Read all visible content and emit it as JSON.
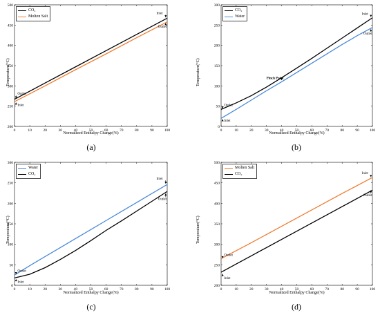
{
  "panel_labels": [
    "(a)",
    "(b)",
    "(c)",
    "(d)"
  ],
  "chart_data": [
    {
      "type": "line",
      "id": "a",
      "xlabel": "Normalized Enthalpy Change(%)",
      "ylabel": "Temperature(°C)",
      "xlim": [
        0,
        100
      ],
      "ylim": [
        200,
        500
      ],
      "xticks": [
        0,
        10,
        20,
        30,
        40,
        50,
        60,
        70,
        80,
        90,
        100
      ],
      "yticks": [
        200,
        250,
        300,
        350,
        400,
        450,
        500
      ],
      "legend_location": "top-left",
      "series": [
        {
          "name": "CO₂",
          "color": "#000000",
          "x": [
            0,
            20,
            40,
            60,
            80,
            100
          ],
          "y": [
            267,
            307,
            347,
            387,
            427,
            467
          ]
        },
        {
          "name": "Molten Salt",
          "color": "#ee7d31",
          "x": [
            0,
            20,
            40,
            60,
            80,
            100
          ],
          "y": [
            261,
            300,
            340,
            379,
            419,
            458
          ]
        }
      ],
      "annotations": [
        {
          "text": "Outlet",
          "x": 2,
          "y": 278,
          "arrow_to": [
            1,
            269
          ]
        },
        {
          "text": "Inlet",
          "x": 2,
          "y": 250,
          "arrow_to": [
            1,
            259
          ]
        },
        {
          "text": "Inlet",
          "x": 93,
          "y": 477,
          "arrow_to": [
            99,
            469
          ]
        },
        {
          "text": "Outlet",
          "x": 94,
          "y": 444,
          "arrow_to": [
            99,
            455
          ]
        }
      ]
    },
    {
      "type": "line",
      "id": "b",
      "xlabel": "Normalized Enthalpy Change(%)",
      "ylabel": "Temperature(°C)",
      "xlim": [
        0,
        100
      ],
      "ylim": [
        0,
        300
      ],
      "xticks": [
        0,
        10,
        20,
        30,
        40,
        50,
        60,
        70,
        80,
        90,
        100
      ],
      "yticks": [
        0,
        50,
        100,
        150,
        200,
        250,
        300
      ],
      "legend_location": "top-left",
      "series": [
        {
          "name": "CO₂",
          "color": "#000000",
          "x": [
            0,
            10,
            20,
            30,
            40,
            50,
            60,
            70,
            80,
            90,
            100
          ],
          "y": [
            42,
            58,
            76,
            97,
            120,
            144,
            168,
            193,
            218,
            243,
            268
          ]
        },
        {
          "name": "Water",
          "color": "#4a8ad8",
          "x": [
            0,
            10,
            20,
            30,
            40,
            50,
            60,
            70,
            80,
            90,
            100
          ],
          "y": [
            20,
            42,
            65,
            88,
            110,
            133,
            156,
            179,
            202,
            224,
            244
          ]
        }
      ],
      "annotations": [
        {
          "text": "Outlet",
          "x": 2,
          "y": 50,
          "arrow_to": [
            1,
            44
          ]
        },
        {
          "text": "Inlet",
          "x": 2,
          "y": 12,
          "arrow_to": [
            1,
            18
          ]
        },
        {
          "text": "Pinch Point",
          "x": 30,
          "y": 117,
          "arrow_to": [
            40,
            114
          ],
          "bold": true
        },
        {
          "text": "Inlet",
          "x": 93,
          "y": 275,
          "arrow_to": [
            99,
            270
          ]
        },
        {
          "text": "Outlet",
          "x": 94,
          "y": 227,
          "arrow_to": [
            99,
            240
          ]
        }
      ]
    },
    {
      "type": "line",
      "id": "c",
      "xlabel": "Normalized Enthalpy Change(%)",
      "ylabel": "Temperature(°C)",
      "xlim": [
        0,
        100
      ],
      "ylim": [
        0,
        300
      ],
      "xticks": [
        0,
        10,
        20,
        30,
        40,
        50,
        60,
        70,
        80,
        90,
        100
      ],
      "yticks": [
        0,
        50,
        100,
        150,
        200,
        250,
        300
      ],
      "legend_location": "top-left",
      "series": [
        {
          "name": "Water",
          "color": "#4a8ad8",
          "x": [
            0,
            10,
            20,
            30,
            40,
            50,
            60,
            70,
            80,
            90,
            100
          ],
          "y": [
            25,
            48,
            70,
            92,
            114,
            136,
            158,
            180,
            202,
            224,
            246
          ]
        },
        {
          "name": "CO₂",
          "color": "#000000",
          "x": [
            0,
            10,
            20,
            30,
            40,
            50,
            60,
            70,
            80,
            90,
            100
          ],
          "y": [
            18,
            27,
            43,
            63,
            85,
            109,
            134,
            157,
            181,
            205,
            229
          ]
        }
      ],
      "annotations": [
        {
          "text": "Outlet",
          "x": 2,
          "y": 33,
          "arrow_to": [
            1,
            27
          ]
        },
        {
          "text": "Inlet",
          "x": 2,
          "y": 6,
          "arrow_to": [
            1,
            15
          ]
        },
        {
          "text": "Inlet",
          "x": 93,
          "y": 258,
          "arrow_to": [
            99,
            248
          ]
        },
        {
          "text": "Outlet",
          "x": 94,
          "y": 208,
          "arrow_to": [
            99,
            224
          ]
        }
      ]
    },
    {
      "type": "line",
      "id": "d",
      "xlabel": "Normalized Enthalpy Change(%)",
      "ylabel": "Temperature(°C)",
      "xlim": [
        0,
        100
      ],
      "ylim": [
        200,
        500
      ],
      "xticks": [
        0,
        10,
        20,
        30,
        40,
        50,
        60,
        70,
        80,
        90,
        100
      ],
      "yticks": [
        200,
        250,
        300,
        350,
        400,
        450,
        500
      ],
      "legend_location": "top-left",
      "series": [
        {
          "name": "Molten Salt",
          "color": "#ee7d31",
          "x": [
            0,
            20,
            40,
            60,
            80,
            100
          ],
          "y": [
            265,
            304,
            344,
            384,
            424,
            463
          ]
        },
        {
          "name": "CO₂",
          "color": "#000000",
          "x": [
            0,
            20,
            40,
            60,
            80,
            100
          ],
          "y": [
            232,
            272,
            312,
            352,
            392,
            432
          ]
        }
      ],
      "annotations": [
        {
          "text": "Outlet",
          "x": 2,
          "y": 272,
          "arrow_to": [
            1,
            266
          ]
        },
        {
          "text": "Inlet",
          "x": 2,
          "y": 215,
          "arrow_to": [
            1,
            228
          ]
        },
        {
          "text": "Inlet",
          "x": 93,
          "y": 471,
          "arrow_to": [
            99,
            464
          ]
        },
        {
          "text": "Outlet",
          "x": 94,
          "y": 417,
          "arrow_to": [
            99,
            432
          ]
        }
      ]
    }
  ]
}
